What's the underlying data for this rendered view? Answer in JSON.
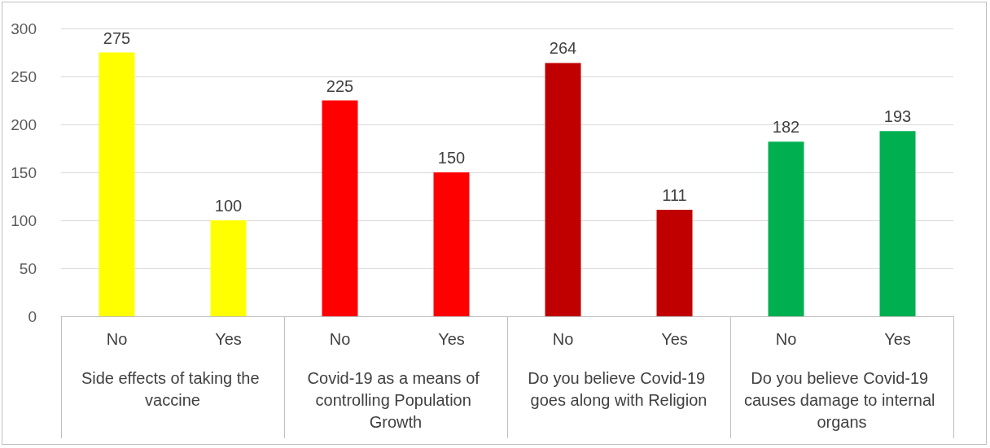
{
  "chart_data": {
    "type": "bar",
    "categories": [
      "No",
      "Yes",
      "No",
      "Yes",
      "No",
      "Yes",
      "No",
      "Yes"
    ],
    "values": [
      275,
      100,
      225,
      150,
      264,
      111,
      182,
      193
    ],
    "colors": [
      "#ffff00",
      "#ffff00",
      "#ff0000",
      "#ff0000",
      "#c00000",
      "#c00000",
      "#00b050",
      "#00b050"
    ],
    "ylim": [
      0,
      300
    ],
    "yticks": [
      0,
      50,
      100,
      150,
      200,
      250,
      300
    ],
    "grid": "y",
    "data_labels": true,
    "annotations": [
      "Side effects of taking the vaccine",
      "Covid-19 as a means of controlling Population Growth",
      "Do you believe Covid-19 goes along with Religion",
      "Do you believe Covid-19 causes damage to internal organs"
    ]
  }
}
